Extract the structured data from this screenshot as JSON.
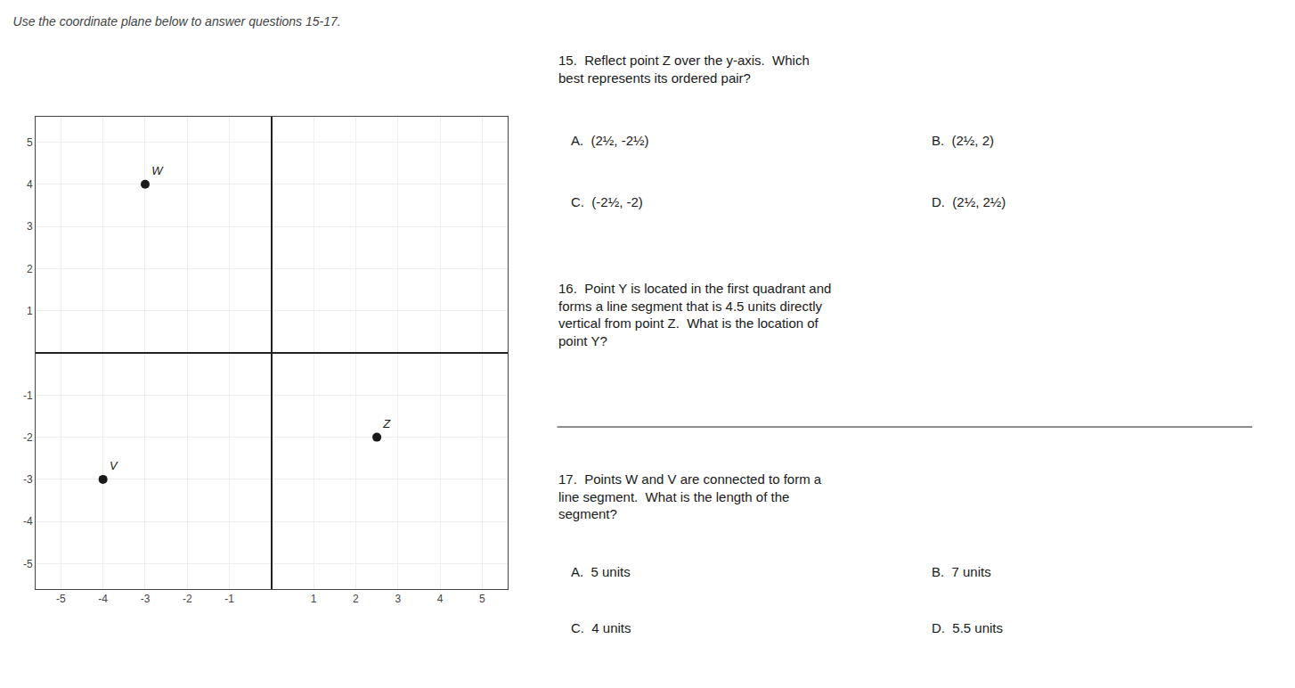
{
  "chart_data": {
    "type": "scatter",
    "title": "Use the coordinate plane below to answer questions 15-17.",
    "x": [
      -3,
      -4,
      2.5
    ],
    "y": [
      4,
      -3,
      -2
    ],
    "labels": [
      "W",
      "V",
      "Z"
    ],
    "color": "#1a1a1a",
    "marker": "circle",
    "xlim": [
      -5.6,
      5.6
    ],
    "ylim": [
      -5.6,
      5.6
    ],
    "xticks": [
      -5,
      -4,
      -3,
      -2,
      -1,
      1,
      2,
      3,
      4,
      5
    ],
    "yticks": [
      -5,
      -4,
      -3,
      -2,
      -1,
      1,
      2,
      3,
      4,
      5
    ],
    "grid": true,
    "annotations": [
      "15.  Reflect point Z over the y-axis.  Which\nbest represents its ordered pair?",
      "A.  (2½, -2½)",
      "B.  (2½, 2)",
      "C.  (-2½, -2)",
      "D.  (2½, 2½)",
      "16.  Point Y is located in the first quadrant and\nforms a line segment that is 4.5 units directly\nvertical from point Z.  What is the location of\npoint Y?",
      "17.  Points W and V are connected to form a\nline segment.  What is the length of the\nsegment?",
      "A.  5 units",
      "B.  7 units",
      "C.  4 units",
      "D.  5.5 units"
    ]
  }
}
